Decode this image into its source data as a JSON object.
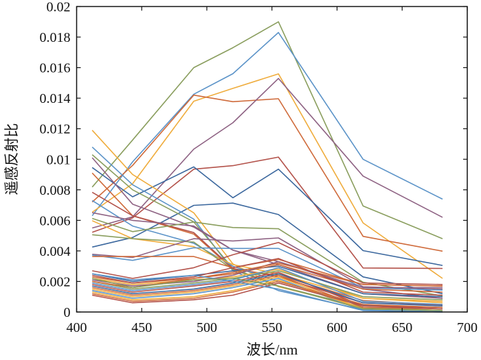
{
  "chart_data": {
    "type": "line",
    "title": "",
    "xlabel": "波长/nm",
    "ylabel": "遥感反射比",
    "xlim": [
      400,
      700
    ],
    "ylim": [
      0,
      0.02
    ],
    "grid": false,
    "legend": "none",
    "xticks": [
      "400",
      "450",
      "500",
      "550",
      "600",
      "650",
      "700"
    ],
    "xtick_values": [
      400,
      450,
      500,
      550,
      600,
      650,
      700
    ],
    "yticks": [
      "0",
      "0.002",
      "0.004",
      "0.006",
      "0.008",
      "0.01",
      "0.012",
      "0.014",
      "0.016",
      "0.018",
      "0.02"
    ],
    "ytick_values": [
      0,
      0.002,
      0.004,
      0.006,
      0.008,
      0.01,
      0.012,
      0.014,
      0.016,
      0.018,
      0.02
    ],
    "x": [
      412,
      443,
      490,
      520,
      555,
      620,
      681
    ],
    "series": [
      {
        "color": "#8a9e5e",
        "values": [
          0.00818,
          0.01126,
          0.016,
          0.0173,
          0.019,
          0.00694,
          0.0048
        ]
      },
      {
        "color": "#5b93c8",
        "values": [
          0.0063,
          0.00983,
          0.01426,
          0.0156,
          0.0183,
          0.01,
          0.00739
        ]
      },
      {
        "color": "#efac3c",
        "values": [
          0.00653,
          0.0084,
          0.0138,
          0.01464,
          0.01559,
          0.00583,
          0.0022
        ]
      },
      {
        "color": "#cf6a3a",
        "values": [
          0.0072,
          0.0096,
          0.0142,
          0.01377,
          0.01396,
          0.00495,
          0.00398
        ]
      },
      {
        "color": "#8e6283",
        "values": [
          0.0055,
          0.00623,
          0.01066,
          0.01239,
          0.01529,
          0.0089,
          0.0062
        ]
      },
      {
        "color": "#b3524a",
        "values": [
          0.00522,
          0.00616,
          0.00935,
          0.00958,
          0.01014,
          0.00288,
          0.00285
        ]
      },
      {
        "color": "#3c689e",
        "values": [
          0.00946,
          0.00754,
          0.0095,
          0.00748,
          0.00935,
          0.00402,
          0.00305
        ]
      },
      {
        "color": "#3c689e",
        "values": [
          0.00425,
          0.00488,
          0.00698,
          0.00713,
          0.00638,
          0.0023,
          0.0012
        ]
      },
      {
        "color": "#efac3c",
        "values": [
          0.0119,
          0.009,
          0.00649,
          0.00315,
          0.00165,
          0.0003,
          0.0001
        ]
      },
      {
        "color": "#5b93c8",
        "values": [
          0.0108,
          0.00833,
          0.00608,
          0.0027,
          0.0014,
          0.00015,
          3e-05
        ]
      },
      {
        "color": "#8a9e5e",
        "values": [
          0.0103,
          0.008,
          0.0059,
          0.00285,
          0.0017,
          0.00023,
          0.0001
        ]
      },
      {
        "color": "#8e6283",
        "values": [
          0.0101,
          0.00706,
          0.00556,
          0.00405,
          0.0033,
          0.0015,
          0.0009
        ]
      },
      {
        "color": "#cf6a3a",
        "values": [
          0.0091,
          0.0063,
          0.0051,
          0.0028,
          0.0024,
          0.00075,
          0.00045
        ]
      },
      {
        "color": "#b3524a",
        "values": [
          0.00784,
          0.0063,
          0.0052,
          0.00285,
          0.0023,
          0.0006,
          0.00045
        ]
      },
      {
        "color": "#5b93c8",
        "values": [
          0.0073,
          0.00563,
          0.0045,
          0.003,
          0.002,
          0.00045,
          0.0003
        ]
      },
      {
        "color": "#8e6283",
        "values": [
          0.0065,
          0.006,
          0.00563,
          0.00405,
          0.0031,
          0.0012,
          0.0009
        ]
      },
      {
        "color": "#8a9e5e",
        "values": [
          0.00613,
          0.00526,
          0.00589,
          0.00553,
          0.00545,
          0.00195,
          0.00105
        ]
      },
      {
        "color": "#efac3c",
        "values": [
          0.00598,
          0.0048,
          0.00428,
          0.0031,
          0.0025,
          0.0009,
          0.0006
        ]
      },
      {
        "color": "#8a9e5e",
        "values": [
          0.00506,
          0.0048,
          0.00458,
          0.00278,
          0.0017,
          0.0003,
          0.0001
        ]
      },
      {
        "color": "#8e6283",
        "values": [
          0.00378,
          0.00357,
          0.0048,
          0.00465,
          0.00485,
          0.00165,
          0.0015
        ]
      },
      {
        "color": "#5b93c8",
        "values": [
          0.00372,
          0.00338,
          0.0042,
          0.00416,
          0.00416,
          0.00158,
          0.00143
        ]
      },
      {
        "color": "#cf6a3a",
        "values": [
          0.00363,
          0.00363,
          0.00363,
          0.0029,
          0.00345,
          0.0018,
          0.0017
        ]
      },
      {
        "color": "#b3524a",
        "values": [
          0.0027,
          0.0022,
          0.0029,
          0.00375,
          0.00455,
          0.0019,
          0.0018
        ]
      },
      {
        "color": "#3c689e",
        "values": [
          0.0025,
          0.002,
          0.0024,
          0.0027,
          0.003,
          0.0012,
          0.001
        ]
      },
      {
        "color": "#cf6a3a",
        "values": [
          0.0023,
          0.0019,
          0.0022,
          0.0025,
          0.0031,
          0.0015,
          0.0013
        ]
      },
      {
        "color": "#efac3c",
        "values": [
          0.0022,
          0.0018,
          0.0021,
          0.0023,
          0.0028,
          0.0009,
          0.0007
        ]
      },
      {
        "color": "#8e6283",
        "values": [
          0.0021,
          0.0017,
          0.002,
          0.0024,
          0.0033,
          0.0016,
          0.0016
        ]
      },
      {
        "color": "#8a9e5e",
        "values": [
          0.002,
          0.0015,
          0.0019,
          0.0022,
          0.0027,
          0.001,
          0.0008
        ]
      },
      {
        "color": "#5b93c8",
        "values": [
          0.0019,
          0.0014,
          0.0018,
          0.0021,
          0.0029,
          0.0007,
          0.0005
        ]
      },
      {
        "color": "#b3524a",
        "values": [
          0.0018,
          0.0013,
          0.0017,
          0.002,
          0.0026,
          0.0004,
          0.0003
        ]
      },
      {
        "color": "#3c689e",
        "values": [
          0.0017,
          0.0012,
          0.0015,
          0.0019,
          0.0025,
          0.0006,
          0.0004
        ]
      },
      {
        "color": "#cf6a3a",
        "values": [
          0.0016,
          0.0011,
          0.0014,
          0.0018,
          0.0024,
          0.0003,
          0.0002
        ]
      },
      {
        "color": "#efac3c",
        "values": [
          0.0015,
          0.001,
          0.0013,
          0.0017,
          0.0023,
          0.0002,
          0.0001
        ]
      },
      {
        "color": "#5b93c8",
        "values": [
          0.0014,
          0.0009,
          0.0012,
          0.0016,
          0.0022,
          0.0001,
          0.0
        ]
      },
      {
        "color": "#efac3c",
        "values": [
          0.0013,
          0.0008,
          0.001,
          0.0014,
          0.0021,
          0.0002,
          0.0001
        ]
      },
      {
        "color": "#cf6a3a",
        "values": [
          0.0012,
          0.0007,
          0.0009,
          0.0013,
          0.002,
          0.0005,
          0.0003
        ]
      },
      {
        "color": "#b3524a",
        "values": [
          0.0011,
          0.0006,
          0.0008,
          0.0011,
          0.0019,
          0.0004,
          0.0002
        ]
      },
      {
        "color": "#cf6a3a",
        "values": [
          0.002,
          0.0016,
          0.0022,
          0.0026,
          0.0032,
          0.0018,
          0.0017
        ]
      },
      {
        "color": "#b3524a",
        "values": [
          0.0024,
          0.0019,
          0.0023,
          0.0029,
          0.0035,
          0.0013,
          0.0011
        ]
      },
      {
        "color": "#5b93c8",
        "values": [
          0.0025,
          0.0021,
          0.0024,
          0.002,
          0.0015,
          0.0001,
          0.0
        ]
      },
      {
        "color": "#8a9e5e",
        "values": [
          0.0022,
          0.0016,
          0.0021,
          0.0022,
          0.0017,
          0.0002,
          0.0001
        ]
      }
    ]
  }
}
